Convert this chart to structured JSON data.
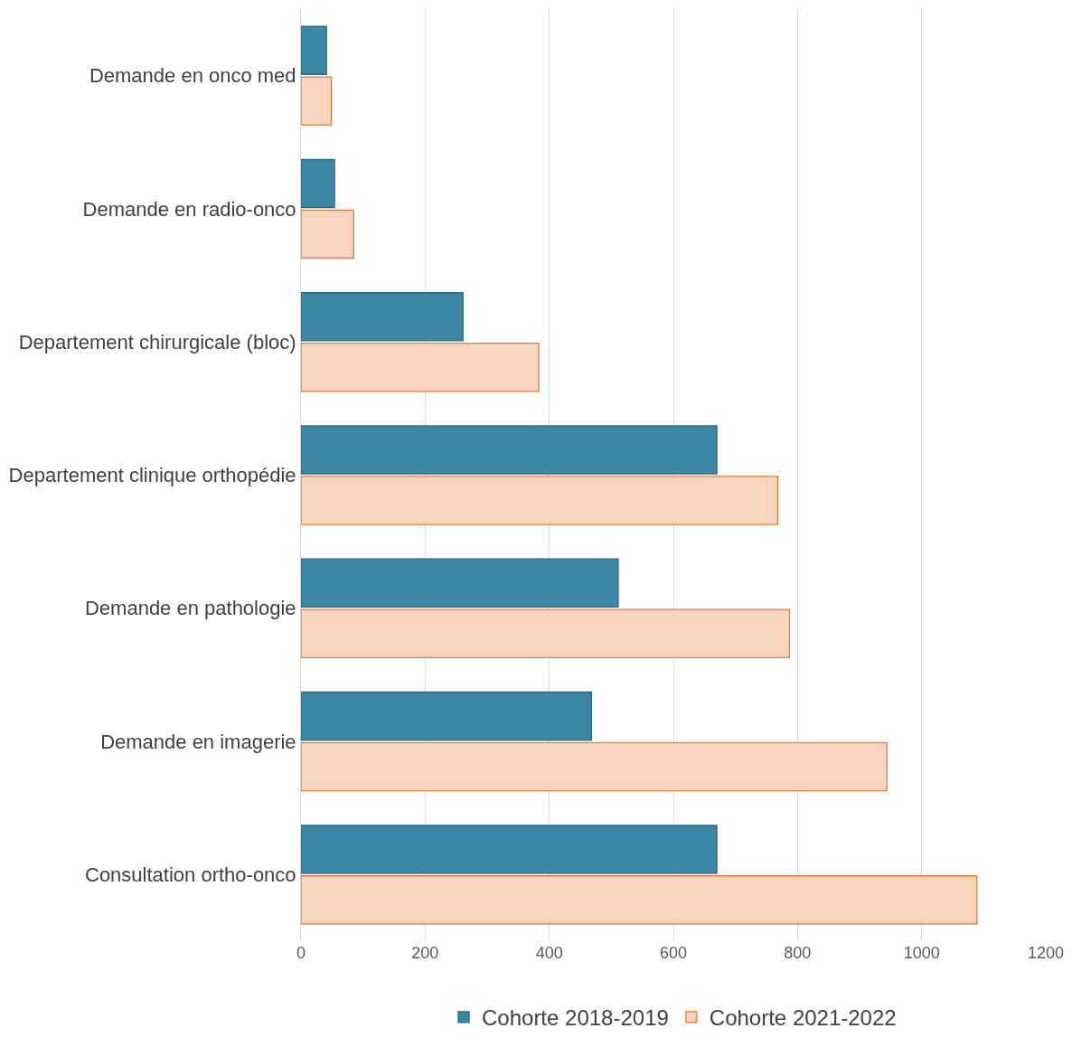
{
  "chart_data": {
    "type": "bar",
    "orientation": "horizontal",
    "categories": [
      "Demande en onco med",
      "Demande en radio-onco",
      "Departement chirurgicale (bloc)",
      "Departement clinique orthopédie",
      "Demande en pathologie",
      "Demande en imagerie",
      "Consultation ortho-onco"
    ],
    "series": [
      {
        "name": "Cohorte 2018-2019",
        "color": "#3c87a6",
        "values": [
          41,
          54,
          261,
          670,
          511,
          468,
          670
        ]
      },
      {
        "name": "Cohorte 2021-2022",
        "color": "#f9d5be",
        "values": [
          49,
          85,
          383,
          768,
          787,
          944,
          1089
        ]
      }
    ],
    "xlim": [
      0,
      1200
    ],
    "xticks": [
      0,
      200,
      400,
      600,
      800,
      1000,
      1200
    ],
    "grid": "x",
    "legend": "bottom"
  }
}
